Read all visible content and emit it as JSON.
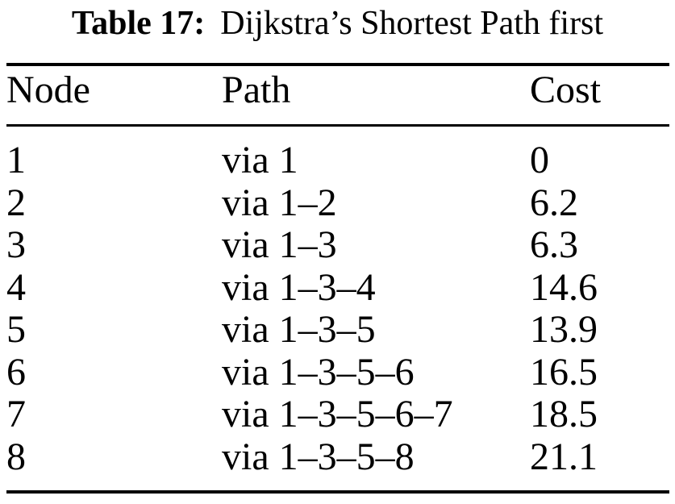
{
  "caption": {
    "label": "Table 17:",
    "title": "Dijkstra’s Shortest Path first"
  },
  "table": {
    "columns": [
      "Node",
      "Path",
      "Cost"
    ],
    "rows": [
      {
        "node": "1",
        "path": "via 1",
        "cost": "0"
      },
      {
        "node": "2",
        "path": "via 1–2",
        "cost": "6.2"
      },
      {
        "node": "3",
        "path": "via 1–3",
        "cost": "6.3"
      },
      {
        "node": "4",
        "path": "via 1–3–4",
        "cost": "14.6"
      },
      {
        "node": "5",
        "path": "via 1–3–5",
        "cost": "13.9"
      },
      {
        "node": "6",
        "path": "via 1–3–5–6",
        "cost": "16.5"
      },
      {
        "node": "7",
        "path": "via 1–3–5–6–7",
        "cost": "18.5"
      },
      {
        "node": "8",
        "path": "via 1–3–5–8",
        "cost": "21.1"
      }
    ]
  },
  "colors": {
    "text": "#000000",
    "background": "#ffffff",
    "rule": "#000000"
  }
}
